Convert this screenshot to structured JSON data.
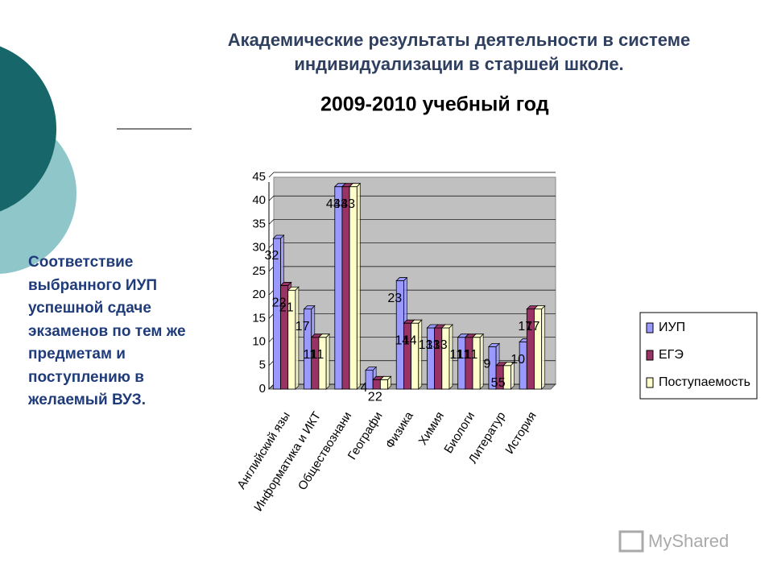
{
  "header": {
    "title": "Академические  результаты деятельности в системе индивидуализации в старшей школе."
  },
  "side_text": "Соответствие выбранного ИУП  успешной сдаче экзаменов по тем же предметам и поступлению в желаемый ВУЗ.",
  "watermark": "MyShared",
  "chart_data": {
    "type": "bar",
    "title": "2009-2010 учебный год",
    "categories": [
      "Английский язы",
      "Информатика и ИКТ",
      "Обществознани",
      "Географи",
      "Физика",
      "Химия",
      "Биологи",
      "Литератур",
      "История"
    ],
    "series": [
      {
        "name": "ИУП",
        "color": "#9999ff",
        "values": [
          32,
          17,
          43,
          4,
          23,
          13,
          11,
          9,
          10
        ]
      },
      {
        "name": "ЕГЭ",
        "color": "#993366",
        "values": [
          22,
          11,
          43,
          2,
          14,
          13,
          11,
          5,
          17
        ]
      },
      {
        "name": "Поступаемость",
        "color": "#ffffcc",
        "values": [
          21,
          11,
          43,
          2,
          14,
          13,
          11,
          5,
          17
        ]
      }
    ],
    "ylim": [
      0,
      45
    ],
    "yticks": [
      0,
      5,
      10,
      15,
      20,
      25,
      30,
      35,
      40,
      45
    ],
    "grid": true,
    "legend": "right"
  }
}
